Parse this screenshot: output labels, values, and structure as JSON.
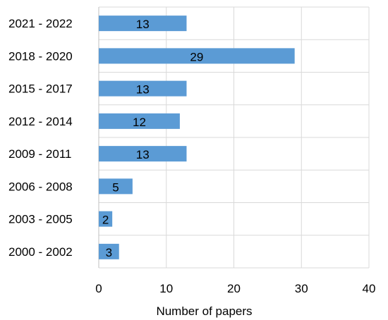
{
  "chart_data": {
    "type": "bar",
    "orientation": "horizontal",
    "categories": [
      "2021 - 2022",
      "2018 - 2020",
      "2015 - 2017",
      "2012 - 2014",
      "2009 - 2011",
      "2006 - 2008",
      "2003 - 2005",
      "2000 - 2002"
    ],
    "values": [
      13,
      29,
      13,
      12,
      13,
      5,
      2,
      3
    ],
    "xlabel": "Number of papers",
    "ylabel": "",
    "xlim": [
      0,
      40
    ],
    "xticks": [
      0,
      10,
      20,
      30,
      40
    ],
    "grid": true,
    "bar_color": "#5b9bd5",
    "data_labels": true
  }
}
